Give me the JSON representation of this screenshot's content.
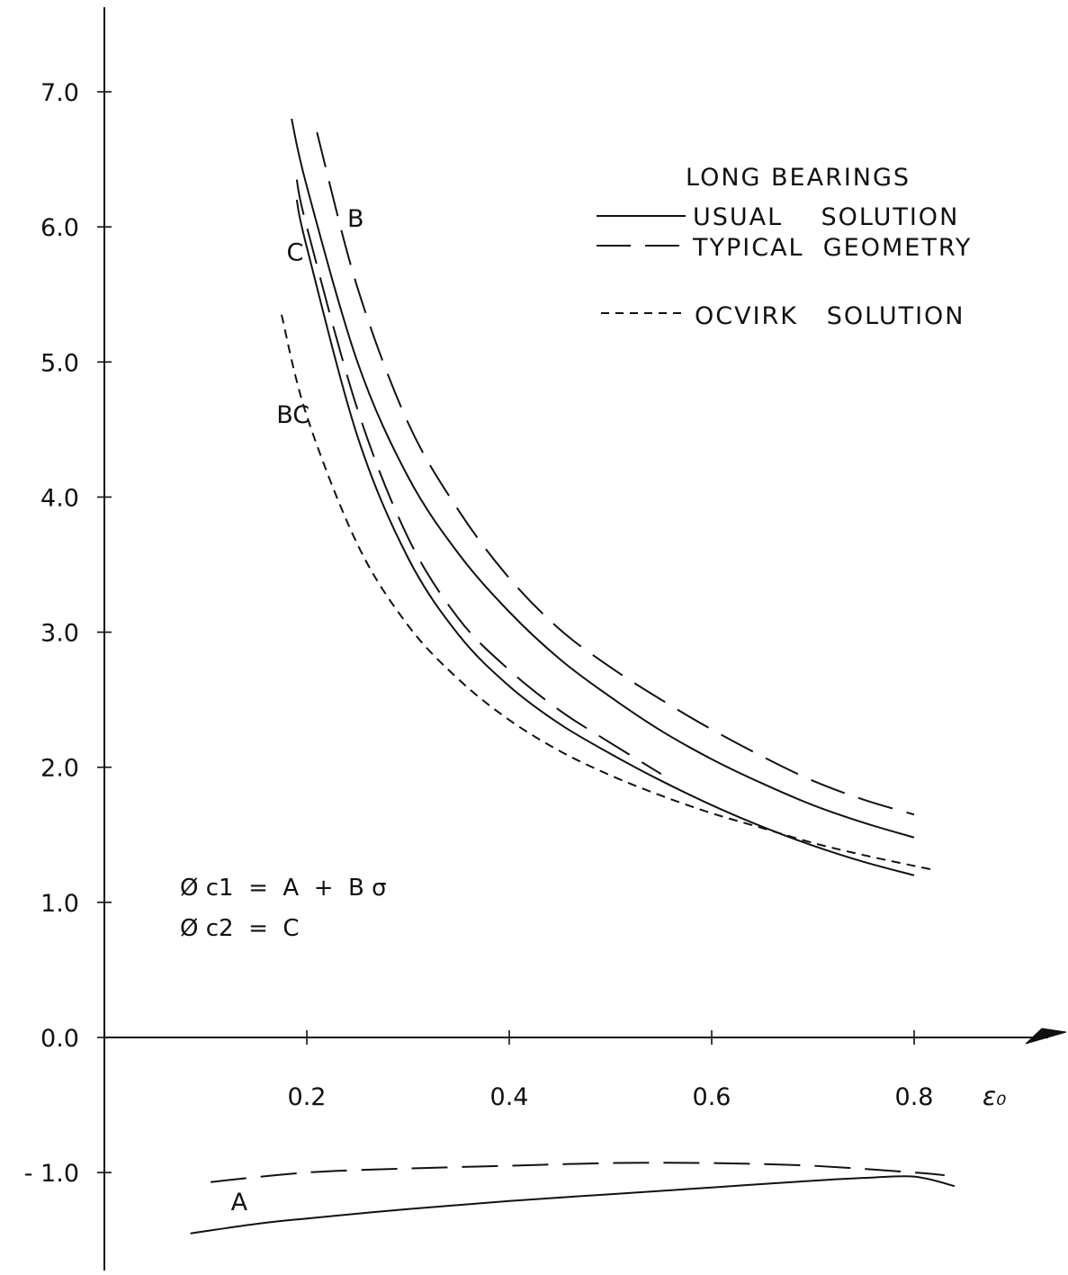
{
  "chart_data": {
    "type": "line",
    "title": "",
    "xlabel": "ε₀",
    "ylabel": "",
    "xlim": [
      0.0,
      0.85
    ],
    "ylim": [
      -1.6,
      7.6
    ],
    "grid": false,
    "x_ticks": [
      {
        "value": 0.2,
        "label": "0.2"
      },
      {
        "value": 0.4,
        "label": "0.4"
      },
      {
        "value": 0.6,
        "label": "0.6"
      },
      {
        "value": 0.8,
        "label": "0.8"
      }
    ],
    "y_ticks": [
      {
        "value": 7.0,
        "label": "7.0"
      },
      {
        "value": 6.0,
        "label": "6.0"
      },
      {
        "value": 5.0,
        "label": "5.0"
      },
      {
        "value": 4.0,
        "label": "4.0"
      },
      {
        "value": 3.0,
        "label": "3.0"
      },
      {
        "value": 2.0,
        "label": "2.0"
      },
      {
        "value": 1.0,
        "label": "1.0"
      },
      {
        "value": 0.0,
        "label": "0.0"
      },
      {
        "value": -1.0,
        "label": "- 1.0"
      }
    ],
    "legend": {
      "placement": "top-right",
      "title": "LONG BEARINGS",
      "entries": [
        {
          "style": "solid",
          "label": "USUAL    SOLUTION"
        },
        {
          "style": "long-dash",
          "label": "TYPICAL  GEOMETRY"
        },
        {
          "style": "short-dash",
          "label": "OCVIRK   SOLUTION"
        }
      ]
    },
    "annotations": {
      "formula_line1": "Ø c1  =  A  +  B σ",
      "formula_line2": "Ø c2  =  C"
    },
    "series": [
      {
        "label": "B",
        "style": "solid",
        "x": [
          0.185,
          0.2,
          0.25,
          0.3,
          0.35,
          0.4,
          0.45,
          0.5,
          0.55,
          0.6,
          0.65,
          0.7,
          0.75,
          0.8
        ],
        "y": [
          6.8,
          6.3,
          5.0,
          4.15,
          3.58,
          3.15,
          2.8,
          2.52,
          2.27,
          2.06,
          1.88,
          1.72,
          1.59,
          1.48
        ]
      },
      {
        "label": "B",
        "style": "long-dash",
        "x": [
          0.21,
          0.25,
          0.3,
          0.35,
          0.4,
          0.45,
          0.5,
          0.55,
          0.6,
          0.65,
          0.7,
          0.75,
          0.8
        ],
        "y": [
          6.7,
          5.55,
          4.55,
          3.9,
          3.4,
          3.02,
          2.74,
          2.5,
          2.28,
          2.08,
          1.9,
          1.76,
          1.65
        ]
      },
      {
        "label": "C",
        "style": "solid",
        "x": [
          0.19,
          0.2,
          0.25,
          0.3,
          0.35,
          0.4,
          0.45,
          0.5,
          0.55,
          0.6,
          0.65,
          0.7,
          0.75,
          0.8
        ],
        "y": [
          6.2,
          5.85,
          4.45,
          3.55,
          2.98,
          2.6,
          2.32,
          2.1,
          1.9,
          1.72,
          1.56,
          1.42,
          1.3,
          1.2
        ]
      },
      {
        "label": "C",
        "style": "long-dash",
        "x": [
          0.19,
          0.2,
          0.25,
          0.3,
          0.35,
          0.4,
          0.45,
          0.5,
          0.55
        ],
        "y": [
          6.35,
          6.0,
          4.65,
          3.7,
          3.1,
          2.72,
          2.42,
          2.18,
          1.95
        ]
      },
      {
        "label": "BC",
        "style": "short-dash",
        "x": [
          0.175,
          0.2,
          0.25,
          0.3,
          0.35,
          0.4,
          0.45,
          0.5,
          0.55,
          0.6,
          0.65,
          0.7,
          0.75,
          0.8,
          0.82
        ],
        "y": [
          5.35,
          4.6,
          3.65,
          3.05,
          2.65,
          2.35,
          2.12,
          1.94,
          1.79,
          1.66,
          1.55,
          1.44,
          1.35,
          1.27,
          1.24
        ]
      },
      {
        "label": "A",
        "style": "solid",
        "x": [
          0.085,
          0.15,
          0.2,
          0.3,
          0.4,
          0.5,
          0.6,
          0.7,
          0.75,
          0.8,
          0.84
        ],
        "y": [
          -1.45,
          -1.38,
          -1.34,
          -1.27,
          -1.21,
          -1.16,
          -1.11,
          -1.06,
          -1.04,
          -1.03,
          -1.1
        ]
      },
      {
        "label": "A",
        "style": "long-dash",
        "x": [
          0.105,
          0.2,
          0.3,
          0.4,
          0.5,
          0.6,
          0.7,
          0.8,
          0.83
        ],
        "y": [
          -1.07,
          -1.0,
          -0.97,
          -0.95,
          -0.93,
          -0.93,
          -0.95,
          -1.0,
          -1.02
        ]
      }
    ],
    "curve_labels": [
      {
        "text": "B",
        "x": 0.24,
        "y": 6.0
      },
      {
        "text": "C",
        "x": 0.18,
        "y": 5.75
      },
      {
        "text": "BC",
        "x": 0.17,
        "y": 4.55
      },
      {
        "text": "A",
        "x": 0.125,
        "y": -1.28
      }
    ]
  }
}
